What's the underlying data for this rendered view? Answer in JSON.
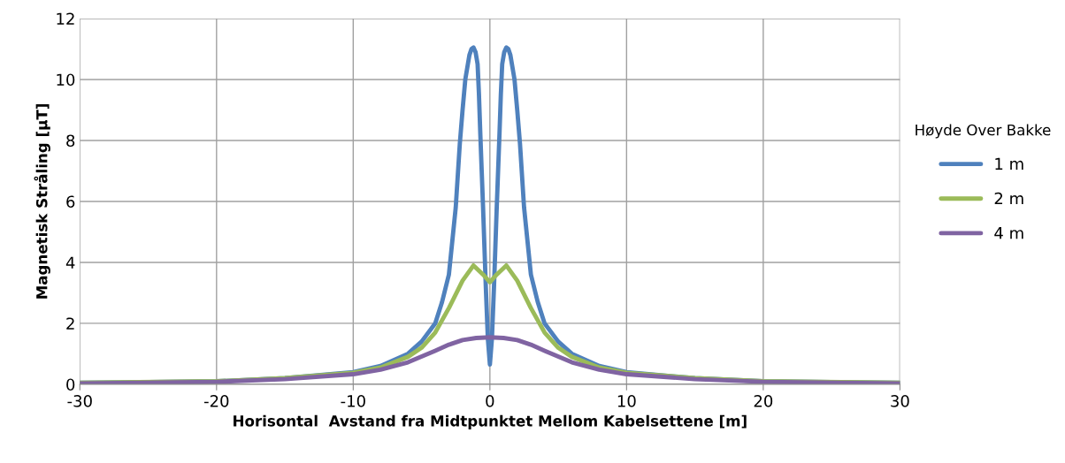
{
  "chart_data": {
    "type": "line",
    "xlabel": "Horisontal  Avstand fra Midtpunktet Mellom Kabelsettene [m]",
    "ylabel": "Magnetisk Stråling [µT]",
    "legend_title": "Høyde Over Bakke",
    "legend": "right",
    "grid": true,
    "xlim": [
      -30,
      30
    ],
    "xticks": [
      -30,
      -20,
      -10,
      0,
      10,
      20,
      30
    ],
    "ylim": [
      0,
      12
    ],
    "yticks": [
      0,
      2,
      4,
      6,
      8,
      10,
      12
    ],
    "series": [
      {
        "name": "1 m",
        "color": "#4f81bd",
        "x": [
          -30,
          -25,
          -20,
          -15,
          -10,
          -8,
          -6,
          -5,
          -4,
          -3.5,
          -3,
          -2.5,
          -2.2,
          -2.0,
          -1.8,
          -1.5,
          -1.35,
          -1.2,
          -1.05,
          -0.9,
          -0.8,
          -0.7,
          -0.6,
          -0.5,
          -0.4,
          -0.3,
          -0.15,
          0,
          0.15,
          0.3,
          0.4,
          0.5,
          0.6,
          0.7,
          0.8,
          0.9,
          1.05,
          1.2,
          1.35,
          1.5,
          1.8,
          2.0,
          2.2,
          2.5,
          3,
          3.5,
          4,
          5,
          6,
          8,
          10,
          15,
          20,
          25,
          30
        ],
        "values": [
          0.05,
          0.07,
          0.1,
          0.2,
          0.4,
          0.6,
          1.0,
          1.4,
          2.0,
          2.7,
          3.6,
          5.8,
          7.9,
          9.0,
          10.0,
          10.8,
          11.0,
          11.05,
          10.9,
          10.5,
          9.5,
          8.2,
          7.0,
          5.8,
          4.5,
          3.2,
          1.5,
          0.65,
          1.5,
          3.2,
          4.5,
          5.8,
          7.0,
          8.2,
          9.5,
          10.5,
          10.9,
          11.05,
          11.0,
          10.8,
          10.0,
          9.0,
          7.9,
          5.8,
          3.6,
          2.7,
          2.0,
          1.4,
          1.0,
          0.6,
          0.4,
          0.2,
          0.1,
          0.07,
          0.05
        ]
      },
      {
        "name": "2 m",
        "color": "#9bbb59",
        "x": [
          -30,
          -20,
          -15,
          -10,
          -8,
          -6,
          -5,
          -4,
          -3,
          -2,
          -1.2,
          -0.5,
          0,
          0.5,
          1.2,
          2,
          3,
          4,
          5,
          6,
          8,
          10,
          15,
          20,
          30
        ],
        "values": [
          0.05,
          0.1,
          0.2,
          0.38,
          0.55,
          0.9,
          1.2,
          1.7,
          2.5,
          3.4,
          3.9,
          3.6,
          3.35,
          3.6,
          3.9,
          3.4,
          2.5,
          1.7,
          1.2,
          0.9,
          0.55,
          0.38,
          0.2,
          0.1,
          0.05
        ]
      },
      {
        "name": "4 m",
        "color": "#8064a2",
        "x": [
          -30,
          -20,
          -15,
          -10,
          -8,
          -6,
          -4,
          -3,
          -2,
          -1,
          0,
          1,
          2,
          3,
          4,
          6,
          8,
          10,
          15,
          20,
          30
        ],
        "values": [
          0.03,
          0.08,
          0.17,
          0.33,
          0.48,
          0.72,
          1.1,
          1.3,
          1.45,
          1.52,
          1.54,
          1.52,
          1.45,
          1.3,
          1.1,
          0.72,
          0.48,
          0.33,
          0.17,
          0.08,
          0.03
        ]
      }
    ]
  }
}
